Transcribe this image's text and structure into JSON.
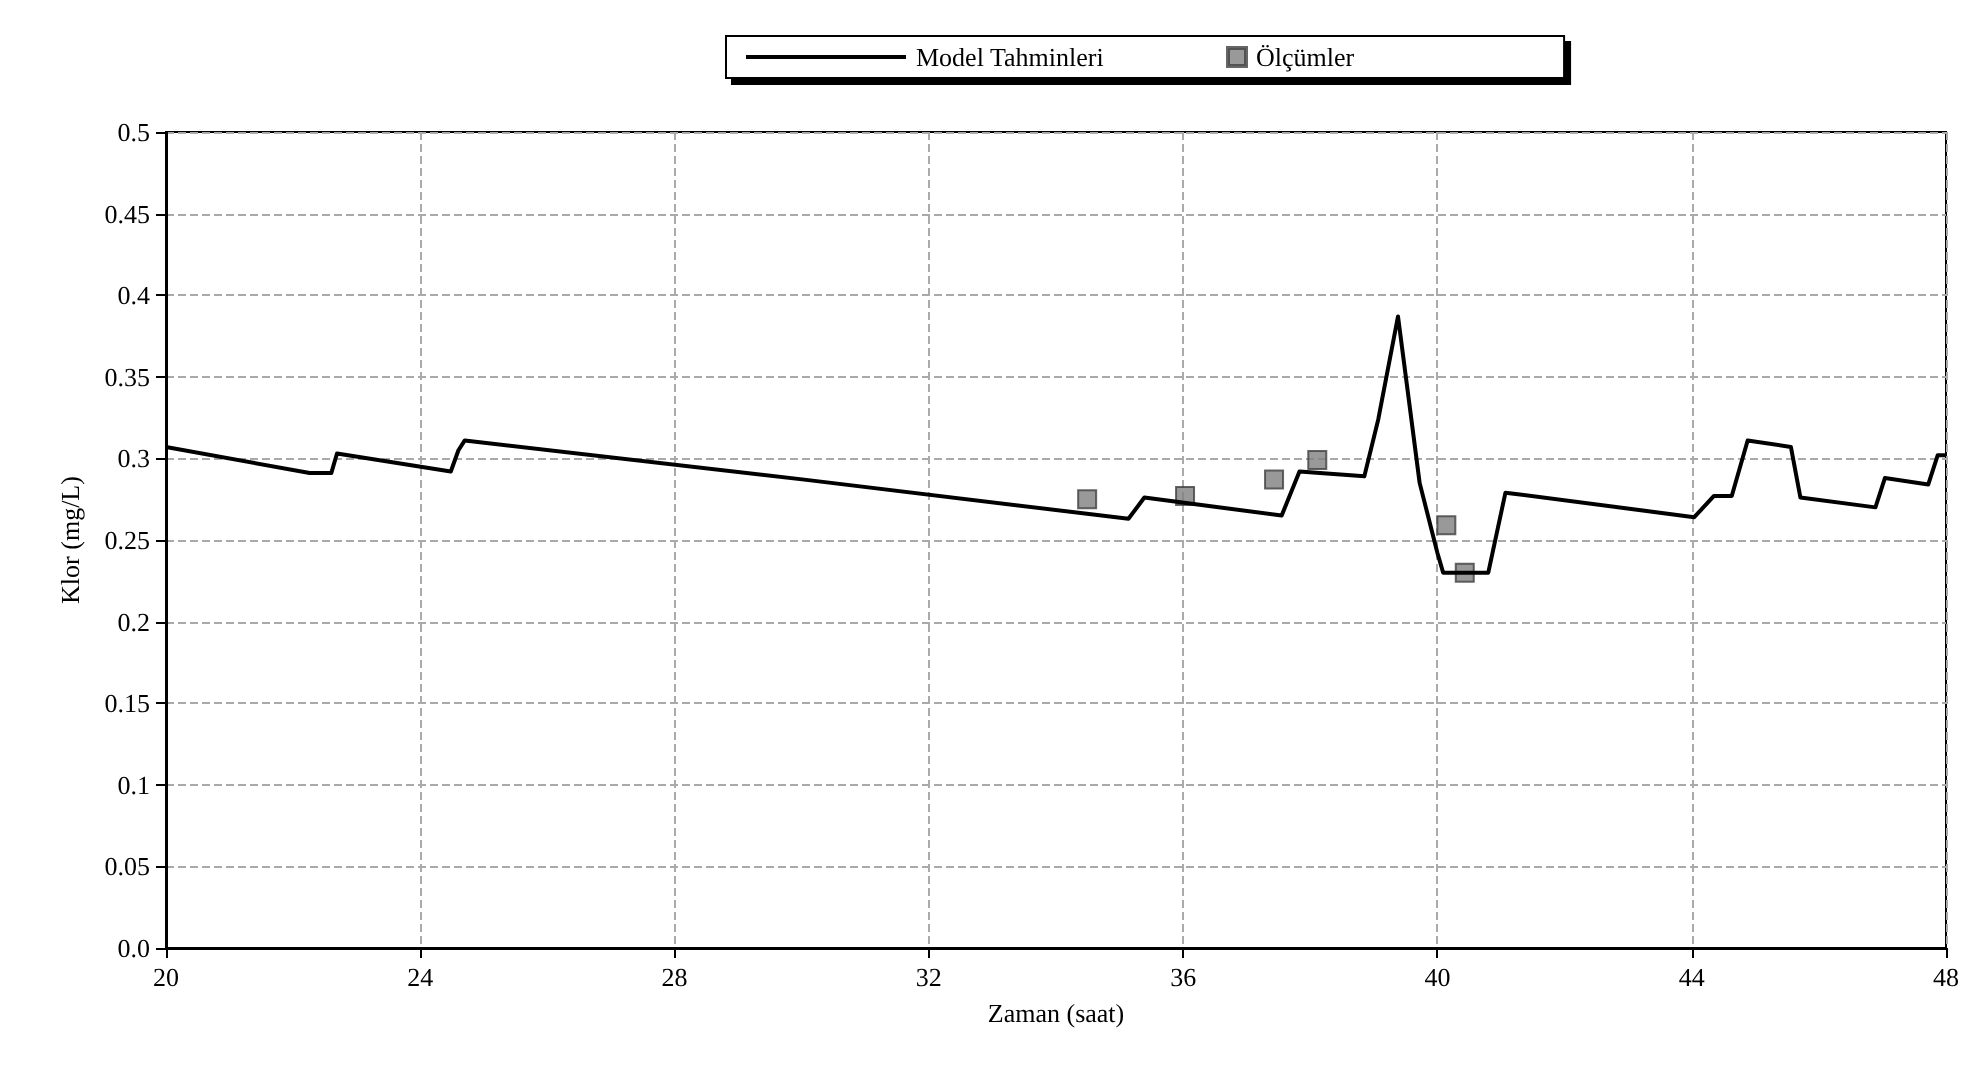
{
  "chart_data": {
    "type": "line",
    "xlabel": "Zaman (saat)",
    "ylabel": "Klor (mg/L)",
    "xlim": [
      20,
      48
    ],
    "xticks": [
      20,
      24,
      28,
      32,
      36,
      40,
      44,
      48
    ],
    "ylim": [
      0,
      0.5
    ],
    "yticks": [
      {
        "value": 0,
        "label": "0.0"
      },
      0.05,
      0.1,
      0.15,
      0.2,
      0.25,
      0.3,
      0.35,
      0.4,
      0.45,
      0.5
    ],
    "grid": true,
    "legend": "top",
    "series": [
      {
        "name": "Model Tahminleri",
        "color": "#000000",
        "marker": "none",
        "line_style": "solid",
        "x": [
          20,
          22.26,
          22.6,
          22.69,
          24.48,
          24.6,
          24.7,
          30.04,
          35.14,
          35.39,
          37.55,
          37.83,
          38.85,
          39.07,
          39.38,
          39.72,
          40.0,
          40.09,
          40.8,
          41.07,
          44.04,
          44.35,
          44.63,
          44.88,
          45.56,
          45.71,
          46.89,
          47.04,
          47.72,
          47.87,
          48
        ],
        "values": [
          0.307,
          0.291,
          0.291,
          0.303,
          0.292,
          0.305,
          0.311,
          0.287,
          0.263,
          0.276,
          0.265,
          0.292,
          0.289,
          0.324,
          0.387,
          0.285,
          0.242,
          0.23,
          0.23,
          0.279,
          0.264,
          0.277,
          0.277,
          0.311,
          0.307,
          0.276,
          0.27,
          0.288,
          0.284,
          0.302,
          0.302
        ]
      },
      {
        "name": "Ölçümler",
        "type": "scatter",
        "color": "#808080",
        "marker": "square",
        "x": [
          34.49,
          36.03,
          37.43,
          38.11,
          40.14,
          40.43
        ],
        "values": [
          0.275,
          0.277,
          0.287,
          0.299,
          0.259,
          0.23
        ]
      }
    ]
  }
}
